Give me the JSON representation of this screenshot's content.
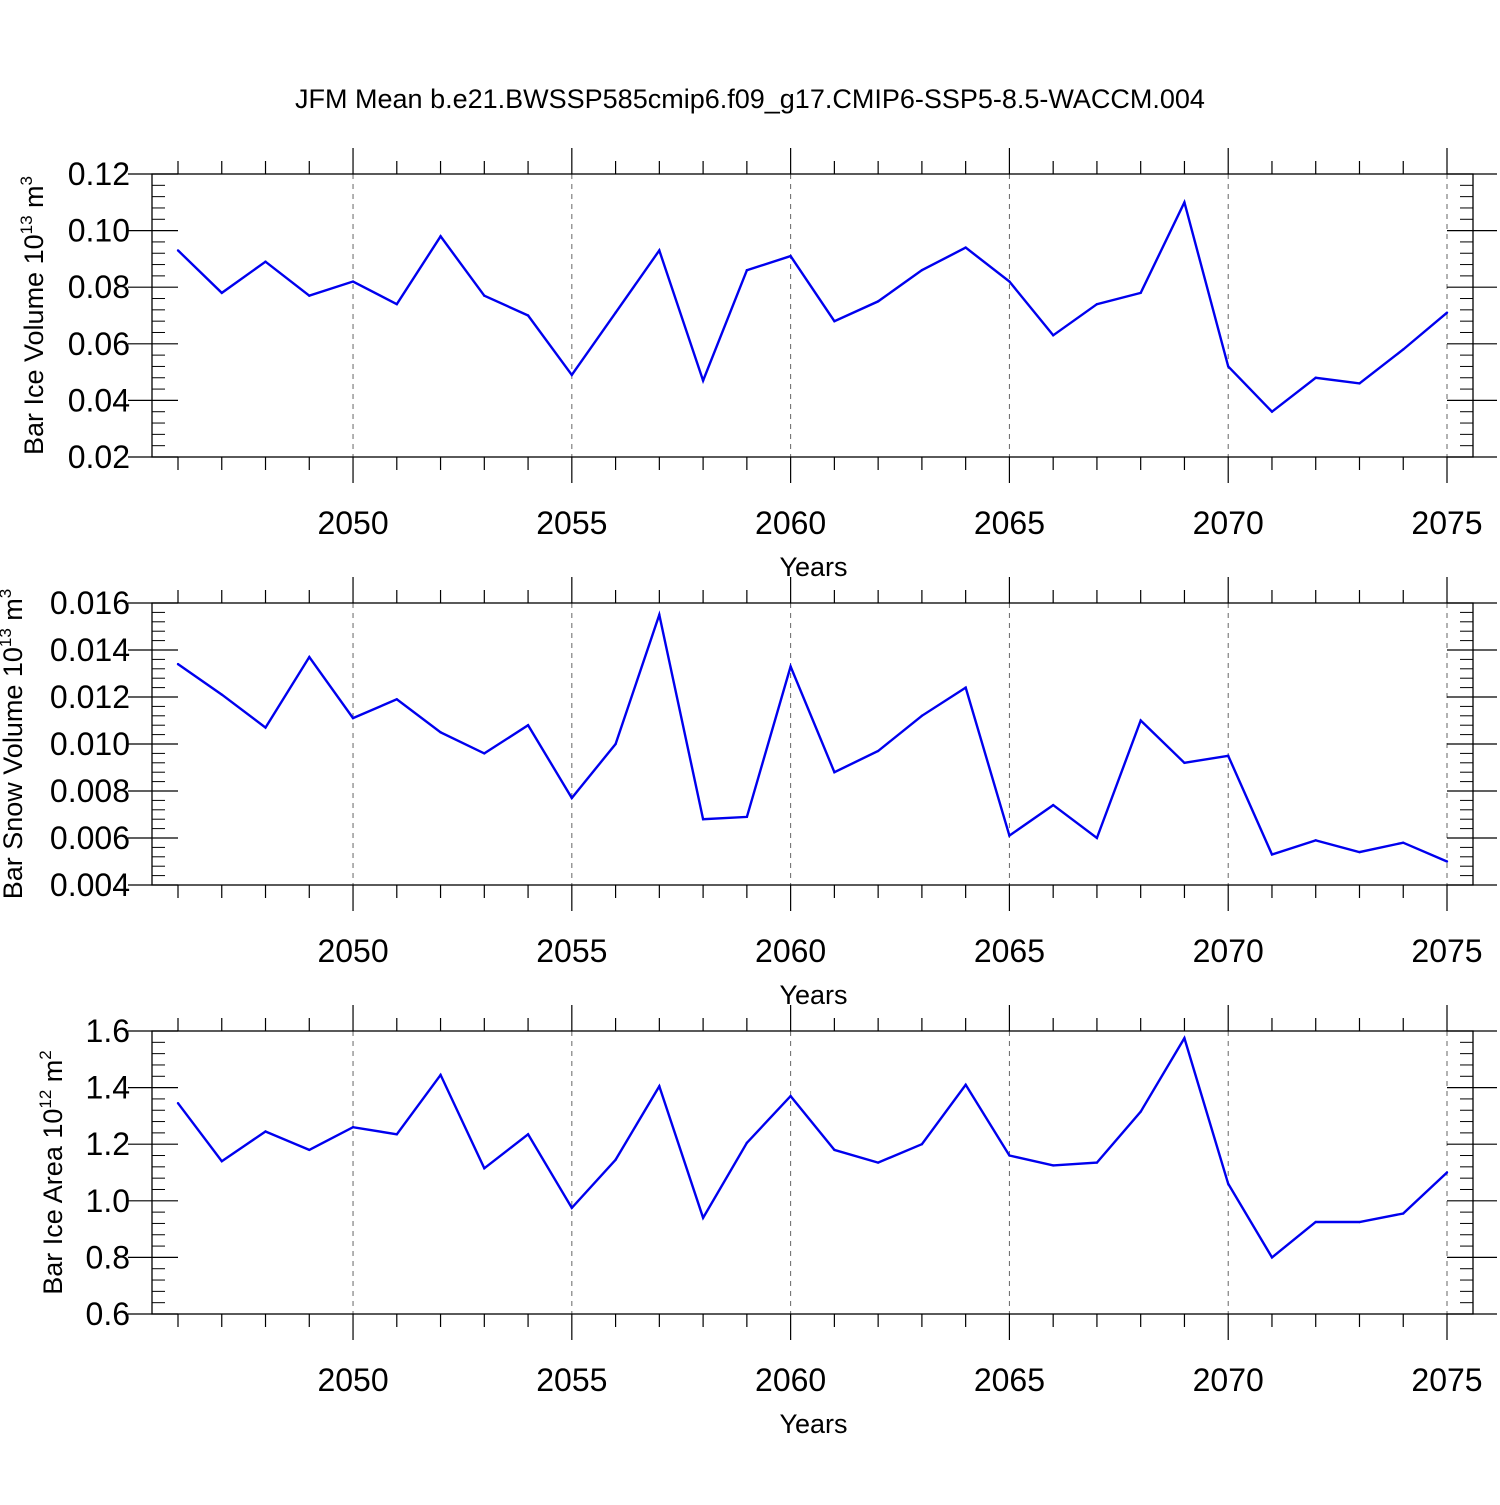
{
  "title": "JFM Mean b.e21.BWSSP585cmip6.f09_g17.CMIP6-SSP5-8.5-WACCM.004",
  "line_color": "#0000ee",
  "chart_data": [
    {
      "type": "line",
      "title": "",
      "xlabel": "Years",
      "ylabel_main": "Bar Ice Volume 10",
      "ylabel_sup": "13",
      "ylabel_unit": " m",
      "ylabel_unit_sup": "3",
      "xlim": [
        2046,
        2075
      ],
      "ylim": [
        0.02,
        0.12
      ],
      "ytick_values": [
        0.02,
        0.04,
        0.06,
        0.08,
        0.1,
        0.12
      ],
      "ytick_labels": [
        "0.02",
        "0.04",
        "0.06",
        "0.08",
        "0.10",
        "0.12"
      ],
      "xtick_values": [
        2050,
        2055,
        2060,
        2065,
        2070,
        2075
      ],
      "xtick_labels": [
        "2050",
        "2055",
        "2060",
        "2065",
        "2070",
        "2075"
      ],
      "grid": true,
      "x": [
        2046,
        2047,
        2048,
        2049,
        2050,
        2051,
        2052,
        2053,
        2054,
        2055,
        2056,
        2057,
        2058,
        2059,
        2060,
        2061,
        2062,
        2063,
        2064,
        2065,
        2066,
        2067,
        2068,
        2069,
        2070,
        2071,
        2072,
        2073,
        2074,
        2075
      ],
      "series": [
        {
          "name": "Bar Ice Volume",
          "values": [
            0.093,
            0.078,
            0.089,
            0.077,
            0.082,
            0.074,
            0.098,
            0.077,
            0.07,
            0.049,
            0.071,
            0.093,
            0.047,
            0.086,
            0.091,
            0.068,
            0.075,
            0.086,
            0.094,
            0.082,
            0.063,
            0.074,
            0.078,
            0.11,
            0.052,
            0.036,
            0.048,
            0.046,
            0.058,
            0.071
          ]
        }
      ]
    },
    {
      "type": "line",
      "title": "",
      "xlabel": "Years",
      "ylabel_main": "Bar Snow Volume 10",
      "ylabel_sup": "13",
      "ylabel_unit": " m",
      "ylabel_unit_sup": "3",
      "xlim": [
        2046,
        2075
      ],
      "ylim": [
        0.004,
        0.016
      ],
      "ytick_values": [
        0.004,
        0.006,
        0.008,
        0.01,
        0.012,
        0.014,
        0.016
      ],
      "ytick_labels": [
        "0.004",
        "0.006",
        "0.008",
        "0.010",
        "0.012",
        "0.014",
        "0.016"
      ],
      "xtick_values": [
        2050,
        2055,
        2060,
        2065,
        2070,
        2075
      ],
      "xtick_labels": [
        "2050",
        "2055",
        "2060",
        "2065",
        "2070",
        "2075"
      ],
      "grid": true,
      "x": [
        2046,
        2047,
        2048,
        2049,
        2050,
        2051,
        2052,
        2053,
        2054,
        2055,
        2056,
        2057,
        2058,
        2059,
        2060,
        2061,
        2062,
        2063,
        2064,
        2065,
        2066,
        2067,
        2068,
        2069,
        2070,
        2071,
        2072,
        2073,
        2074,
        2075
      ],
      "series": [
        {
          "name": "Bar Snow Volume",
          "values": [
            0.0134,
            0.0121,
            0.0107,
            0.0137,
            0.0111,
            0.0119,
            0.0105,
            0.0096,
            0.0108,
            0.0077,
            0.01,
            0.0155,
            0.0068,
            0.0069,
            0.0133,
            0.0088,
            0.0097,
            0.0112,
            0.0124,
            0.0061,
            0.0074,
            0.006,
            0.011,
            0.0092,
            0.0095,
            0.0053,
            0.0059,
            0.0054,
            0.0058,
            0.005
          ]
        }
      ]
    },
    {
      "type": "line",
      "title": "",
      "xlabel": "Years",
      "ylabel_main": "Bar Ice Area 10",
      "ylabel_sup": "12",
      "ylabel_unit": " m",
      "ylabel_unit_sup": "2",
      "xlim": [
        2046,
        2075
      ],
      "ylim": [
        0.6,
        1.6
      ],
      "ytick_values": [
        0.6,
        0.8,
        1.0,
        1.2,
        1.4,
        1.6
      ],
      "ytick_labels": [
        "0.6",
        "0.8",
        "1.0",
        "1.2",
        "1.4",
        "1.6"
      ],
      "xtick_values": [
        2050,
        2055,
        2060,
        2065,
        2070,
        2075
      ],
      "xtick_labels": [
        "2050",
        "2055",
        "2060",
        "2065",
        "2070",
        "2075"
      ],
      "grid": true,
      "x": [
        2046,
        2047,
        2048,
        2049,
        2050,
        2051,
        2052,
        2053,
        2054,
        2055,
        2056,
        2057,
        2058,
        2059,
        2060,
        2061,
        2062,
        2063,
        2064,
        2065,
        2066,
        2067,
        2068,
        2069,
        2070,
        2071,
        2072,
        2073,
        2074,
        2075
      ],
      "series": [
        {
          "name": "Bar Ice Area",
          "values": [
            1.345,
            1.14,
            1.245,
            1.18,
            1.26,
            1.235,
            1.445,
            1.115,
            1.235,
            0.975,
            1.145,
            1.405,
            0.94,
            1.205,
            1.37,
            1.18,
            1.135,
            1.2,
            1.41,
            1.16,
            1.125,
            1.135,
            1.315,
            1.575,
            1.06,
            0.8,
            0.925,
            0.925,
            0.955,
            1.1
          ]
        }
      ]
    }
  ]
}
